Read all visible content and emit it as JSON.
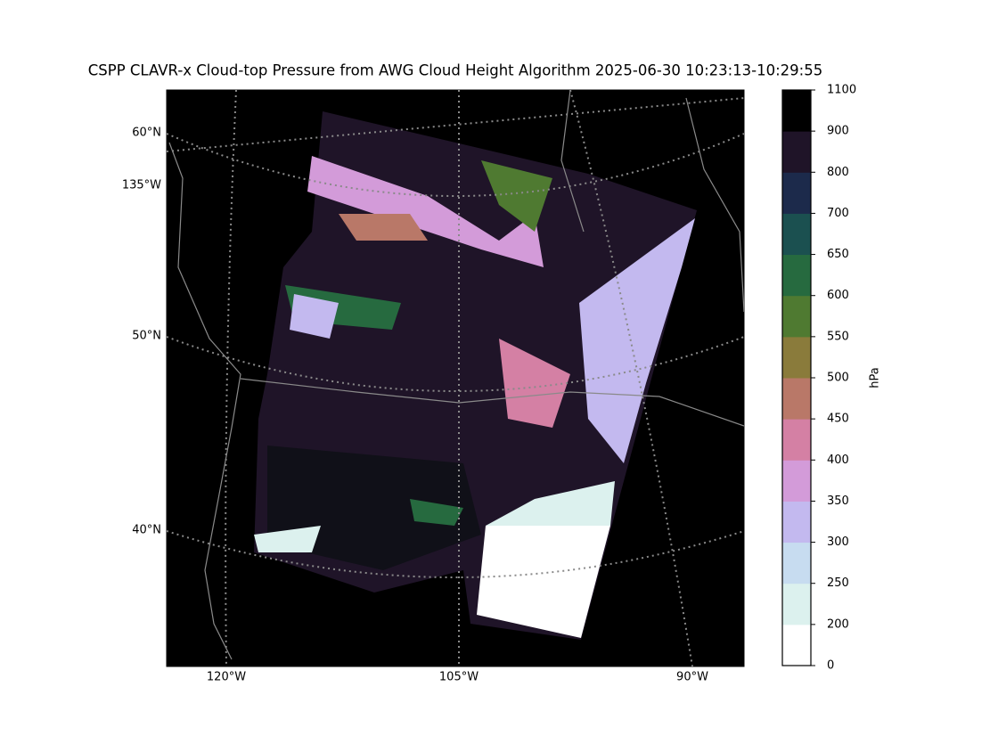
{
  "title": "CSPP CLAVR-x Cloud-top Pressure from AWG Cloud Height Algorithm 2025-06-30 10:23:13-10:29:55",
  "map": {
    "lat_labels": [
      "60°N",
      "135°W",
      "50°N",
      "40°N"
    ],
    "lon_labels": [
      "120°W",
      "105°W",
      "90°W"
    ]
  },
  "colorbar": {
    "label": "hPa",
    "ticks": [
      0,
      200,
      250,
      300,
      350,
      400,
      450,
      500,
      550,
      600,
      650,
      700,
      800,
      900,
      1100
    ],
    "colors": [
      "#ffffff",
      "#dcf1ee",
      "#c7dcf0",
      "#c3b9ef",
      "#d39bd9",
      "#d480a4",
      "#b97868",
      "#8a7b3b",
      "#4f7a31",
      "#266a3f",
      "#1b5050",
      "#1c2a4b",
      "#1f1428",
      "#000000"
    ]
  }
}
